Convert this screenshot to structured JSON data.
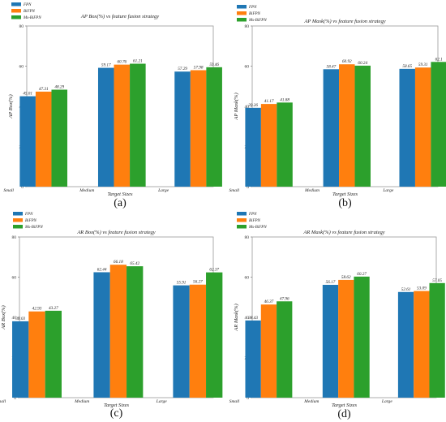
{
  "chart_data": [
    {
      "type": "bar",
      "panel_label": "(a)",
      "title": "AP Box(%) vs feature fusion strategy",
      "xlabel": "Target Sizes",
      "ylabel": "AP Box(%)",
      "ylim": [
        0,
        80
      ],
      "yticks": [
        "0",
        "20",
        "40",
        "60",
        "80"
      ],
      "categories": [
        "Small",
        "Medium",
        "Large"
      ],
      "legend_position": "upper-left",
      "grid": false,
      "series": [
        {
          "name": "FPN",
          "color": "#1f77b4",
          "values": [
            45.01,
            59.17,
            57.29
          ],
          "labels": [
            "45.01",
            "59.17",
            "57.29"
          ]
        },
        {
          "name": "BiFPN",
          "color": "#ff7f0e",
          "values": [
            47.31,
            60.76,
            57.98
          ],
          "labels": [
            "47.31",
            "60.76",
            "57.98"
          ]
        },
        {
          "name": "Ms-BiFPN",
          "color": "#2ca02c",
          "values": [
            48.29,
            61.21,
            59.46
          ],
          "labels": [
            "48.29",
            "61.21",
            "59.46"
          ]
        }
      ]
    },
    {
      "type": "bar",
      "panel_label": "(b)",
      "title": "AP Mask(%) vs feature fusion strategy",
      "xlabel": "Target Sizes",
      "ylabel": "AP Mask(%)",
      "ylim": [
        0,
        80
      ],
      "yticks": [
        "0",
        "20",
        "40",
        "60",
        "80"
      ],
      "categories": [
        "Small",
        "Medium",
        "Large"
      ],
      "legend_position": "upper-left",
      "grid": false,
      "series": [
        {
          "name": "FPN",
          "color": "#1f77b4",
          "values": [
            39.26,
            58.47,
            58.65
          ],
          "labels": [
            "39.26",
            "58.47",
            "58.65"
          ]
        },
        {
          "name": "BiFPN",
          "color": "#ff7f0e",
          "values": [
            41.17,
            60.92,
            59.31
          ],
          "labels": [
            "41.17",
            "60.92",
            "59.31"
          ]
        },
        {
          "name": "Ms-BiFPN",
          "color": "#2ca02c",
          "values": [
            41.88,
            60.24,
            62.1
          ],
          "labels": [
            "41.88",
            "60.24",
            "62.1"
          ]
        }
      ]
    },
    {
      "type": "bar",
      "panel_label": "(c)",
      "title": "AR Box(%) vs feature fusion strategy",
      "xlabel": "Target Sizes",
      "ylabel": "AR Box(%)",
      "ylim": [
        0,
        80
      ],
      "yticks": [
        "0",
        "20",
        "40",
        "60",
        "80"
      ],
      "categories": [
        "Small",
        "Medium",
        "Large"
      ],
      "legend_position": "upper-left",
      "grid": false,
      "series": [
        {
          "name": "FPN",
          "color": "#1f77b4",
          "values": [
            38.03,
            62.44,
            55.91
          ],
          "labels": [
            "38.03",
            "62.44",
            "55.91"
          ]
        },
        {
          "name": "BiFPN",
          "color": "#ff7f0e",
          "values": [
            42.93,
            66.18,
            56.27
          ],
          "labels": [
            "42.93",
            "66.18",
            "56.27"
          ]
        },
        {
          "name": "Ms-BiFPN",
          "color": "#2ca02c",
          "values": [
            43.27,
            65.42,
            62.37
          ],
          "labels": [
            "43.27",
            "65.42",
            "62.37"
          ]
        }
      ]
    },
    {
      "type": "bar",
      "panel_label": "(d)",
      "title": "AR Mask(%) vs feature fusion strategy",
      "xlabel": "Target Sizes",
      "ylabel": "AR Mask(%)",
      "ylim": [
        0,
        80
      ],
      "yticks": [
        "0",
        "20",
        "40",
        "60",
        "80"
      ],
      "categories": [
        "Small",
        "Medium",
        "Large"
      ],
      "legend_position": "upper-left",
      "grid": false,
      "series": [
        {
          "name": "FPN",
          "color": "#1f77b4",
          "values": [
            38.43,
            56.17,
            52.61
          ],
          "labels": [
            "38.43",
            "56.17",
            "52.61"
          ]
        },
        {
          "name": "BiFPN",
          "color": "#ff7f0e",
          "values": [
            46.37,
            58.62,
            53.09
          ],
          "labels": [
            "46.37",
            "58.62",
            "53.09"
          ]
        },
        {
          "name": "Ms-BiFPN",
          "color": "#2ca02c",
          "values": [
            47.96,
            60.27,
            57.05
          ],
          "labels": [
            "47.96",
            "60.27",
            "57.05"
          ]
        }
      ]
    }
  ]
}
